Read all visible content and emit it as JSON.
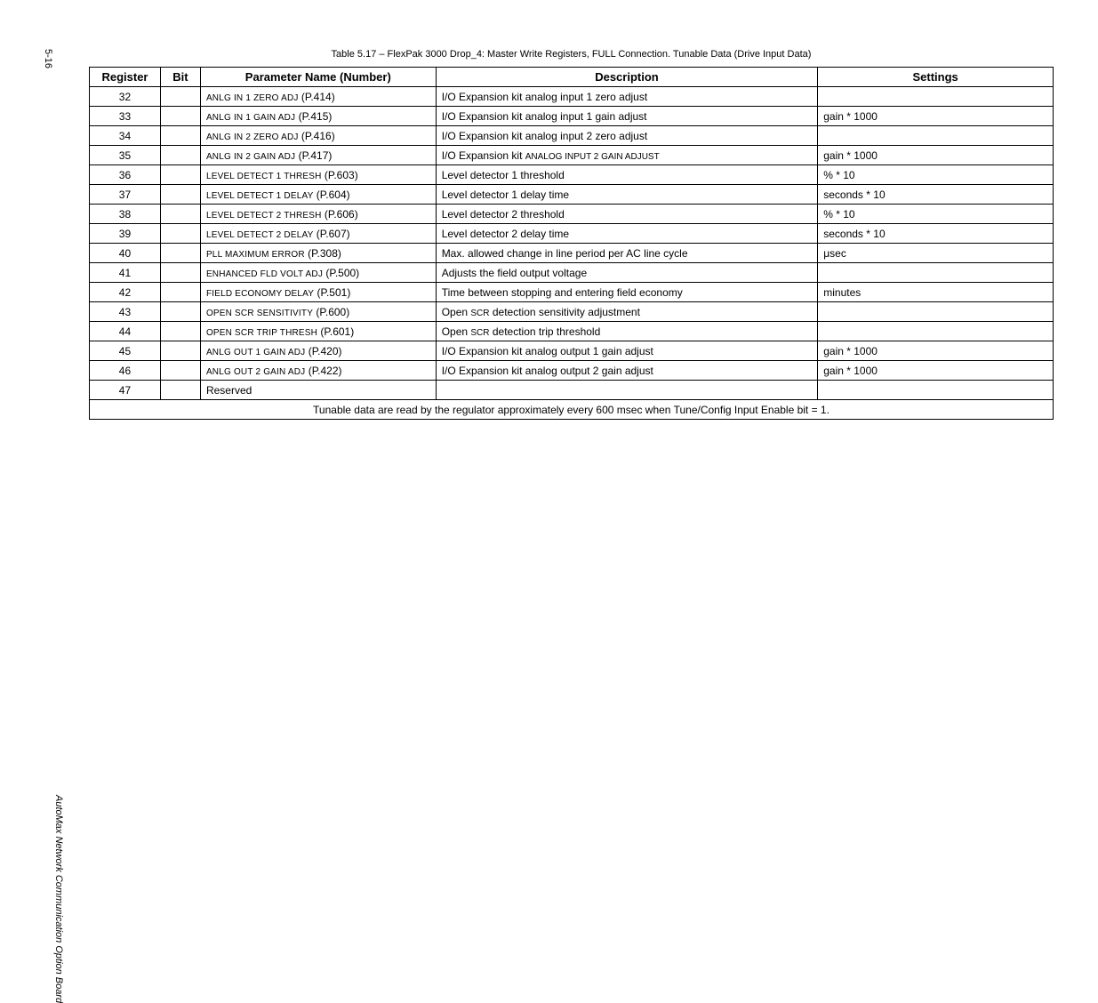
{
  "page_number": "5-16",
  "side_label": "AutoMax Network Communication Option Board",
  "caption": "Table 5.17 – FlexPak 3000 Drop_4: Master Write Registers, FULL Connection. Tunable Data (Drive Input Data)",
  "headers": {
    "register": "Register",
    "bit": "Bit",
    "param": "Parameter Name (Number)",
    "desc": "Description",
    "settings": "Settings"
  },
  "rows": [
    {
      "register": "32",
      "bit": "",
      "param_sc": "ANLG IN 1 ZERO ADJ",
      "param_code": "(P.414)",
      "desc": "I/O Expansion kit analog input 1 zero adjust",
      "settings": ""
    },
    {
      "register": "33",
      "bit": "",
      "param_sc": "ANLG IN 1 GAIN ADJ",
      "param_code": "(P.415)",
      "desc": "I/O Expansion kit analog input 1 gain adjust",
      "settings": "gain * 1000"
    },
    {
      "register": "34",
      "bit": "",
      "param_sc": "ANLG IN 2 ZERO ADJ",
      "param_code": "(P.416)",
      "desc": "I/O Expansion kit analog input 2 zero adjust",
      "settings": ""
    },
    {
      "register": "35",
      "bit": "",
      "param_sc": "ANLG IN 2 GAIN ADJ",
      "param_code": "(P.417)",
      "desc_prefix": "I/O Expansion kit ",
      "desc_sc": "ANALOG INPUT 2 GAIN ADJUST",
      "settings": "gain * 1000"
    },
    {
      "register": "36",
      "bit": "",
      "param_sc": "LEVEL DETECT 1 THRESH",
      "param_code": "(P.603)",
      "desc": "Level detector 1 threshold",
      "settings": "% * 10"
    },
    {
      "register": "37",
      "bit": "",
      "param_sc": "LEVEL DETECT 1 DELAY",
      "param_code": "(P.604)",
      "desc": "Level detector 1 delay time",
      "settings": "seconds * 10"
    },
    {
      "register": "38",
      "bit": "",
      "param_sc": "LEVEL DETECT 2 THRESH",
      "param_code": "(P.606)",
      "desc": "Level detector 2 threshold",
      "settings": "% * 10"
    },
    {
      "register": "39",
      "bit": "",
      "param_sc": "LEVEL DETECT 2 DELAY",
      "param_code": "(P.607)",
      "desc": "Level detector 2 delay time",
      "settings": "seconds * 10"
    },
    {
      "register": "40",
      "bit": "",
      "param_sc": "PLL MAXIMUM ERROR",
      "param_code": "(P.308)",
      "desc": "Max. allowed change in line period per AC line cycle",
      "settings": "μsec"
    },
    {
      "register": "41",
      "bit": "",
      "param_sc": "ENHANCED FLD VOLT ADJ",
      "param_code": "(P.500)",
      "desc": "Adjusts the field output voltage",
      "settings": ""
    },
    {
      "register": "42",
      "bit": "",
      "param_sc": "FIELD ECONOMY DELAY",
      "param_code": "(P.501)",
      "desc": "Time between stopping and entering field economy",
      "settings": "minutes"
    },
    {
      "register": "43",
      "bit": "",
      "param_sc": "OPEN SCR SENSITIVITY",
      "param_code": "(P.600)",
      "desc_prefix": "Open ",
      "desc_sc": "SCR",
      "desc_suffix": " detection sensitivity adjustment",
      "settings": ""
    },
    {
      "register": "44",
      "bit": "",
      "param_sc": "OPEN SCR TRIP THRESH",
      "param_code": "(P.601)",
      "desc_prefix": "Open ",
      "desc_sc": "SCR",
      "desc_suffix": " detection trip threshold",
      "settings": ""
    },
    {
      "register": "45",
      "bit": "",
      "param_sc": "ANLG OUT 1 GAIN ADJ",
      "param_code": "(P.420)",
      "desc": "I/O Expansion kit analog output 1 gain adjust",
      "settings": "gain * 1000"
    },
    {
      "register": "46",
      "bit": "",
      "param_sc": "ANLG OUT 2 GAIN ADJ",
      "param_code": "(P.422)",
      "desc": "I/O Expansion kit analog output 2 gain adjust",
      "settings": "gain * 1000"
    },
    {
      "register": "47",
      "bit": "",
      "param_plain": "Reserved",
      "desc": "",
      "settings": ""
    }
  ],
  "footer": "Tunable data are read by the regulator approximately every 600 msec when Tune/Config Input Enable bit = 1."
}
